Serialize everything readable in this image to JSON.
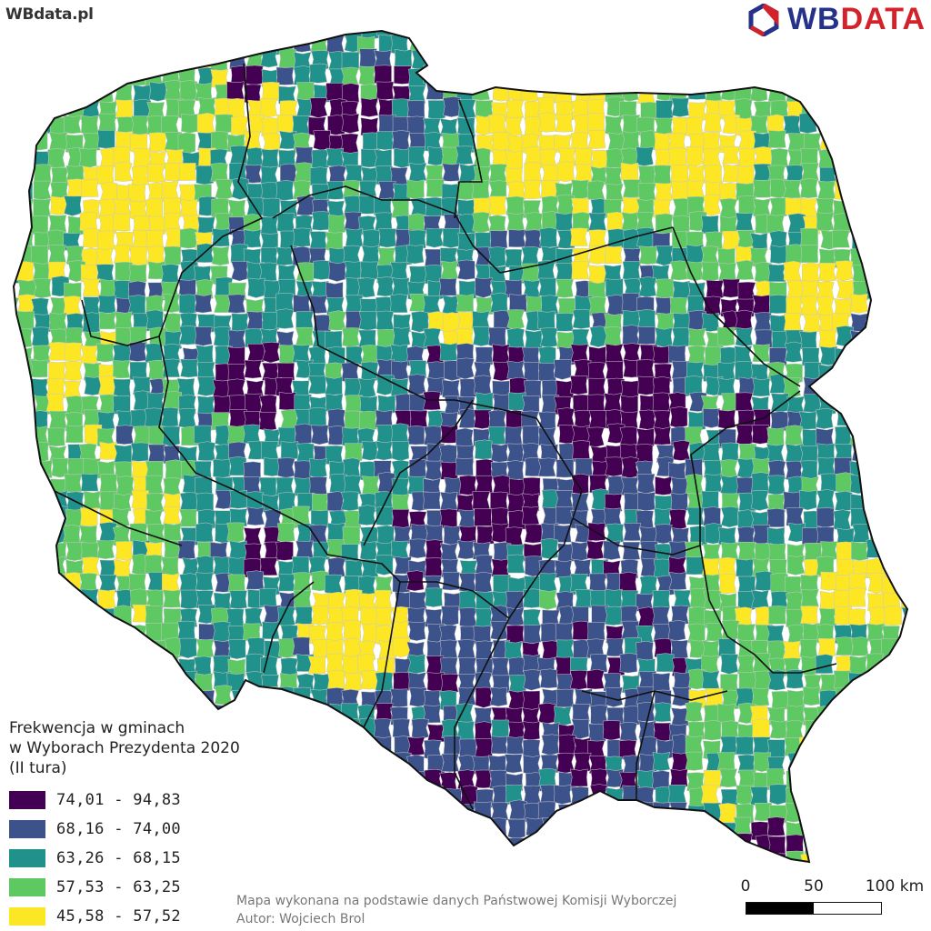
{
  "header": {
    "site_label": "WBdata.pl",
    "brand_part1": "WB",
    "brand_part2": "DATA",
    "brand_logo_icon": "hexagon-logo-icon"
  },
  "legend": {
    "title_lines": [
      "Frekwencja w gminach",
      "w Wyborach Prezydenta 2020",
      "(II tura)"
    ],
    "items": [
      {
        "label": "74,01 - 94,83",
        "color": "#440154"
      },
      {
        "label": "68,16 - 74,00",
        "color": "#3b528b"
      },
      {
        "label": "63,26 - 68,15",
        "color": "#21918c"
      },
      {
        "label": "57,53 - 63,25",
        "color": "#5ec962"
      },
      {
        "label": "45,58 - 57,52",
        "color": "#fde725"
      }
    ]
  },
  "credits": {
    "line1": "Mapa wykonana na podstawie danych Państwowej Komisji Wyborczej",
    "line2": "Autor: Wojciech Brol"
  },
  "scale": {
    "labels": [
      "0",
      "50",
      "100 km"
    ],
    "colors": [
      "#000000",
      "#ffffff"
    ]
  },
  "colors": {
    "border": "#111111",
    "gmina_border": "#c8c8c8",
    "brand_blue": "#26318a",
    "brand_red": "#d2232a"
  }
}
